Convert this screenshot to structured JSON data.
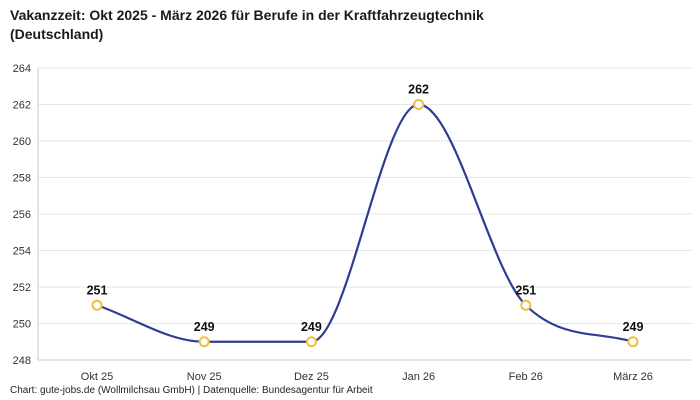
{
  "chart_data": {
    "type": "line",
    "title": "Vakanzzeit: Okt 2025 - März 2026 für Berufe in der Kraftfahrzeugtechnik (Deutschland)",
    "footer": "Chart: gute-jobs.de (Wollmilchsau GmbH) | Datenquelle: Bundesagentur für Arbeit",
    "categories": [
      "Okt 25",
      "Nov 25",
      "Dez 25",
      "Jan 26",
      "Feb 26",
      "März 26"
    ],
    "values": [
      251,
      249,
      249,
      262,
      251,
      249
    ],
    "data_labels": [
      "251",
      "249",
      "249",
      "262",
      "251",
      "249"
    ],
    "ylim": [
      248,
      264
    ],
    "ytick_step": 2,
    "grid": "horizontal",
    "legend": "none",
    "line_color": "#2e3d94",
    "marker_stroke_color": "#efbf3a",
    "marker_fill_color": "#ffffff",
    "label_color": "#111111"
  }
}
